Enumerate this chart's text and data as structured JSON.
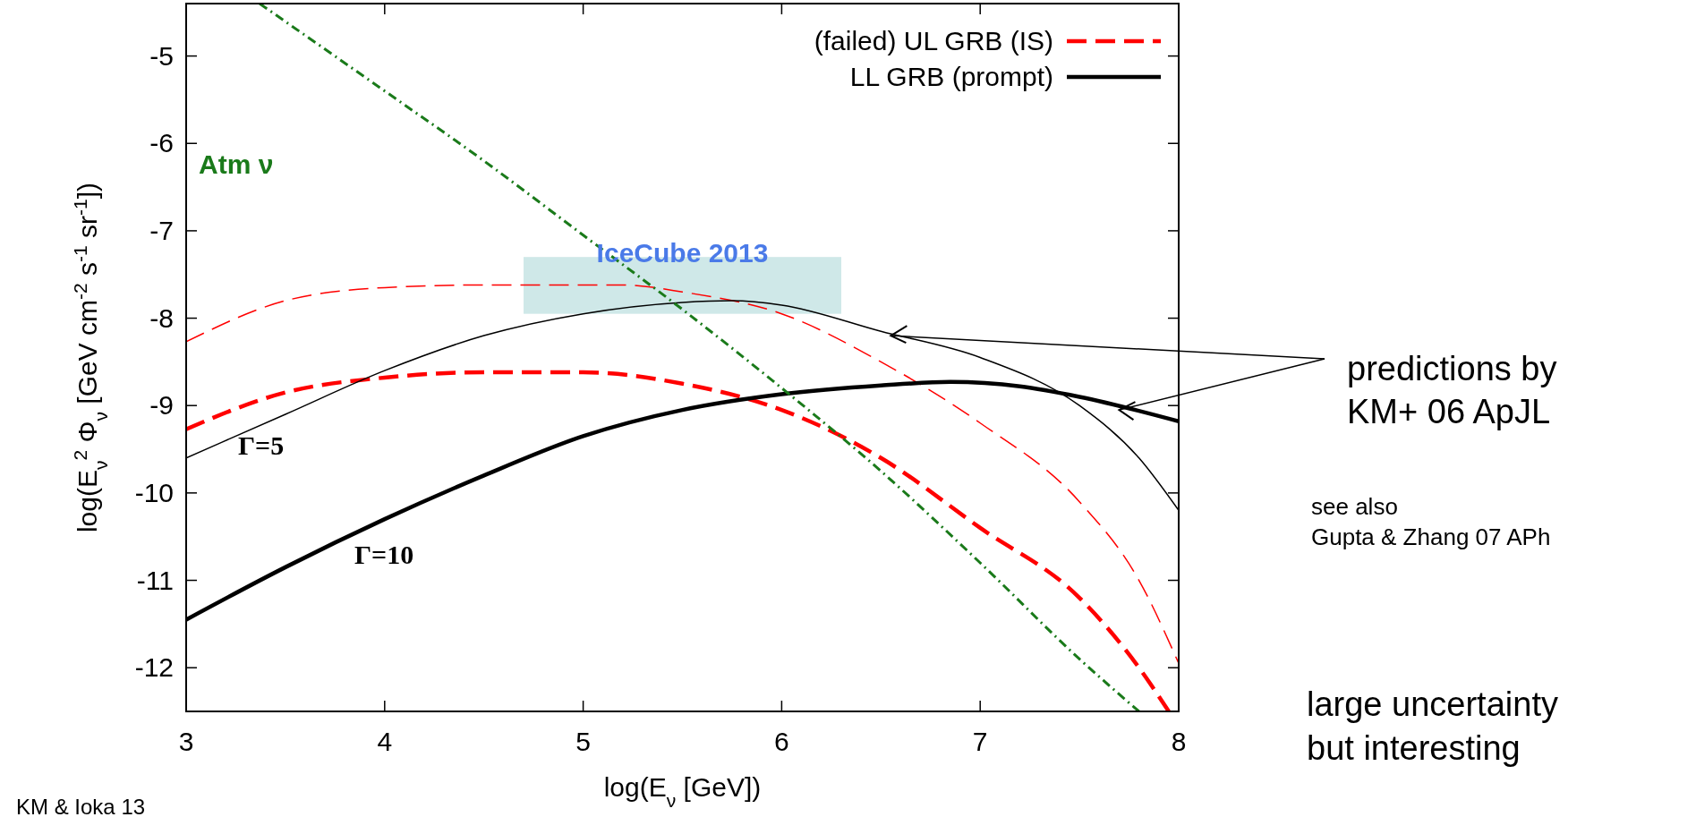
{
  "chart_data": {
    "type": "line",
    "xlabel": "log(E$_{ν}$ [GeV])",
    "ylabel": "log(E$_{ν}$$^{2}$ Φ$_{ν}$ [GeV cm$^{-2}$ s$^{-1}$ sr$^{-1}$])",
    "xlim": [
      3,
      8
    ],
    "ylim": [
      -12.5,
      -4.4
    ],
    "xticks": [
      3,
      4,
      5,
      6,
      7,
      8
    ],
    "yticks": [
      -5,
      -6,
      -7,
      -8,
      -9,
      -10,
      -11,
      -12
    ],
    "grid": false,
    "legend": "top right",
    "series": [
      {
        "type": "bar",
        "name": "IceCube 2013",
        "color": "#cfe8e8",
        "x": [
          5.5
        ],
        "base": [
          -7.95
        ],
        "values": [
          0.65
        ]
      },
      {
        "color": "#ff0000",
        "line_style": "dashed",
        "x": [
          3,
          3.5,
          4,
          4.5,
          5,
          5.2,
          5.5,
          6,
          6.5,
          7,
          7.5,
          7.8,
          8
        ],
        "values": [
          -8.27,
          -7.8,
          -7.65,
          -7.62,
          -7.62,
          -7.62,
          -7.7,
          -7.95,
          -8.5,
          -9.2,
          -10.1,
          -11,
          -11.95
        ]
      },
      {
        "name": "(failed) UL GRB (IS)",
        "color": "#ff0000",
        "line_style": "dashed",
        "x": [
          3,
          3.5,
          4,
          4.5,
          5,
          5.5,
          6,
          6.5,
          7,
          7.5,
          7.8,
          7.95
        ],
        "values": [
          -9.27,
          -8.85,
          -8.68,
          -8.62,
          -8.62,
          -8.75,
          -9.05,
          -9.6,
          -10.4,
          -11.2,
          -12,
          -12.5
        ]
      },
      {
        "color": "#000000",
        "line_style": "solid",
        "x": [
          3,
          3.5,
          4,
          4.5,
          5,
          5.5,
          5.75,
          6,
          6.5,
          7,
          7.5,
          7.8,
          8
        ],
        "values": [
          -9.6,
          -9.1,
          -8.6,
          -8.2,
          -7.95,
          -7.82,
          -7.8,
          -7.85,
          -8.15,
          -8.45,
          -9,
          -9.6,
          -10.2
        ]
      },
      {
        "name": "LL GRB (prompt)",
        "color": "#000000",
        "line_style": "solid",
        "x": [
          3,
          3.5,
          4,
          4.5,
          5,
          5.5,
          6,
          6.5,
          6.85,
          7.2,
          7.5,
          8
        ],
        "values": [
          -11.45,
          -10.85,
          -10.3,
          -9.8,
          -9.35,
          -9.05,
          -8.87,
          -8.77,
          -8.73,
          -8.78,
          -8.9,
          -9.18
        ]
      },
      {
        "name": "Atm ν",
        "color": "#1a7a1a",
        "line_style": "dashdot",
        "x": [
          3.37,
          4,
          4.5,
          5,
          5.5,
          6,
          6.5,
          7,
          7.5,
          7.8
        ],
        "values": [
          -4.4,
          -5.4,
          -6.2,
          -7.05,
          -7.9,
          -8.8,
          -9.75,
          -10.8,
          -11.9,
          -12.5
        ]
      }
    ],
    "annotations": [
      "Γ=5",
      "Γ=10",
      {
        "text": "predictions by\nKM+ 06 ApJL",
        "x": 7.7,
        "y": -9.05
      },
      "see also\nGupta & Zhang 07 APh",
      "large uncertainty\nbut interesting",
      "KM & Ioka 13"
    ]
  }
}
